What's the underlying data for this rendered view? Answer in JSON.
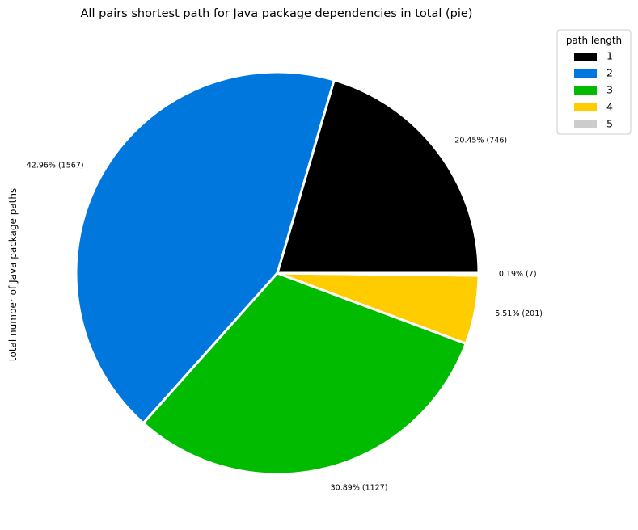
{
  "chart_data": {
    "type": "pie",
    "title": "All pairs shortest path for Java package dependencies in total (pie)",
    "ylabel": "total number of Java package paths",
    "legend": {
      "title": "path length",
      "placement": "top-right"
    },
    "slices": [
      {
        "name": "1",
        "value": 746,
        "percent_label": "20.45% (746)",
        "color": "#000000"
      },
      {
        "name": "2",
        "value": 1567,
        "percent_label": "42.96% (1567)",
        "color": "#0077DD"
      },
      {
        "name": "3",
        "value": 1127,
        "percent_label": "30.89% (1127)",
        "color": "#00BB00"
      },
      {
        "name": "4",
        "value": 201,
        "percent_label": "5.51% (201)",
        "color": "#FFCC00"
      },
      {
        "name": "5",
        "value": 7,
        "percent_label": "0.19% (7)",
        "color": "#CCCCCC"
      }
    ],
    "start_angle_deg": 0,
    "direction": "counterclockwise",
    "wedge_edge_color": "#ffffff"
  }
}
